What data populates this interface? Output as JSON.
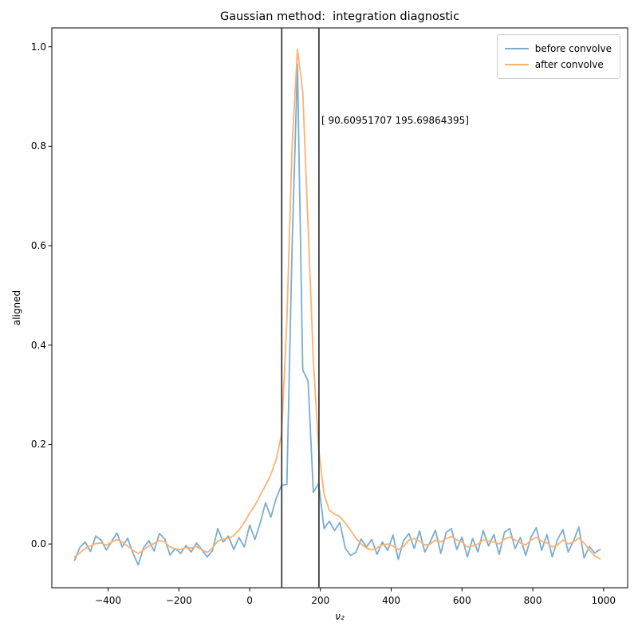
{
  "chart_data": {
    "type": "line",
    "title": "Gaussian method:  integration diagnostic",
    "xlabel": "ν₂",
    "ylabel": "aligned",
    "xlim": [
      -559,
      1068
    ],
    "ylim": [
      -0.088,
      1.038
    ],
    "grid": false,
    "legend_position": "upper right",
    "xticks": {
      "values": [
        -400,
        -200,
        0,
        200,
        400,
        600,
        800,
        1000
      ],
      "labels": [
        "−400",
        "−200",
        "0",
        "200",
        "400",
        "600",
        "800",
        "1000"
      ]
    },
    "yticks": {
      "values": [
        0.0,
        0.2,
        0.4,
        0.6,
        0.8,
        1.0
      ],
      "labels": [
        "0.0",
        "0.2",
        "0.4",
        "0.6",
        "0.8",
        "1.0"
      ]
    },
    "x": [
      -495,
      -480,
      -465,
      -450,
      -435,
      -420,
      -405,
      -390,
      -375,
      -360,
      -345,
      -330,
      -315,
      -300,
      -285,
      -270,
      -255,
      -240,
      -225,
      -210,
      -195,
      -180,
      -165,
      -150,
      -135,
      -120,
      -105,
      -90,
      -75,
      -60,
      -45,
      -30,
      -15,
      0,
      15,
      30,
      45,
      60,
      75,
      90,
      105,
      120,
      135,
      150,
      165,
      180,
      195,
      210,
      225,
      240,
      255,
      270,
      285,
      300,
      315,
      330,
      345,
      360,
      375,
      390,
      405,
      420,
      435,
      450,
      465,
      480,
      495,
      510,
      525,
      540,
      555,
      570,
      585,
      600,
      615,
      630,
      645,
      660,
      675,
      690,
      705,
      720,
      735,
      750,
      765,
      780,
      795,
      810,
      825,
      840,
      855,
      870,
      885,
      900,
      915,
      930,
      945,
      960,
      975,
      990
    ],
    "series": [
      {
        "name": "before convolve",
        "color": "#79add2",
        "y": [
          -0.033,
          -0.007,
          0.004,
          -0.015,
          0.016,
          0.008,
          -0.012,
          0.005,
          0.022,
          -0.006,
          0.012,
          -0.018,
          -0.042,
          -0.008,
          0.007,
          -0.014,
          0.021,
          0.01,
          -0.022,
          -0.009,
          -0.019,
          -0.003,
          -0.016,
          0.002,
          -0.012,
          -0.026,
          -0.013,
          0.031,
          0.004,
          0.016,
          -0.011,
          0.013,
          -0.006,
          0.038,
          0.009,
          0.043,
          0.083,
          0.054,
          0.092,
          0.118,
          0.12,
          0.6,
          0.965,
          0.35,
          0.328,
          0.104,
          0.122,
          0.031,
          0.046,
          0.027,
          0.043,
          -0.008,
          -0.023,
          -0.017,
          0.01,
          -0.006,
          0.009,
          -0.021,
          0.004,
          -0.013,
          0.018,
          -0.031,
          0.007,
          0.021,
          -0.009,
          0.026,
          -0.016,
          0.004,
          0.028,
          -0.019,
          0.023,
          0.031,
          -0.011,
          0.014,
          -0.026,
          0.011,
          -0.016,
          0.027,
          -0.004,
          0.019,
          -0.021,
          0.024,
          0.031,
          -0.009,
          0.013,
          -0.023,
          0.014,
          0.033,
          -0.013,
          0.019,
          -0.026,
          0.009,
          0.029,
          -0.016,
          0.006,
          0.034,
          -0.028,
          -0.005,
          -0.018,
          -0.011
        ]
      },
      {
        "name": "after convolve",
        "color": "#ffb16e",
        "y": [
          -0.026,
          -0.018,
          -0.009,
          -0.004,
          0.001,
          0.002,
          -0.002,
          0.004,
          0.009,
          0.004,
          -0.004,
          -0.013,
          -0.019,
          -0.012,
          -0.004,
          0.001,
          0.007,
          0.004,
          -0.006,
          -0.01,
          -0.011,
          -0.007,
          -0.008,
          -0.005,
          -0.012,
          -0.017,
          -0.008,
          0.006,
          0.01,
          0.011,
          0.017,
          0.028,
          0.044,
          0.062,
          0.078,
          0.098,
          0.118,
          0.14,
          0.17,
          0.22,
          0.45,
          0.8,
          0.995,
          0.91,
          0.64,
          0.37,
          0.19,
          0.1,
          0.068,
          0.06,
          0.055,
          0.042,
          0.028,
          0.012,
          0.0,
          -0.008,
          -0.012,
          -0.008,
          -0.002,
          0.0,
          -0.004,
          -0.011,
          -0.005,
          0.008,
          0.011,
          0.006,
          -0.002,
          0.0,
          0.008,
          0.004,
          0.011,
          0.015,
          0.008,
          0.004,
          -0.006,
          -0.004,
          0.0,
          0.008,
          0.006,
          0.004,
          0.0,
          0.01,
          0.014,
          0.008,
          0.002,
          -0.002,
          0.008,
          0.013,
          0.006,
          0.002,
          -0.006,
          -0.002,
          0.008,
          0.0,
          0.004,
          0.012,
          0.002,
          -0.012,
          -0.024,
          -0.03
        ]
      }
    ],
    "vlines": {
      "color": "#333333",
      "values": [
        90.60951707,
        195.69864395
      ]
    },
    "annotation": {
      "text": "[ 90.60951707 195.69864395]",
      "x": 196,
      "y": 0.85
    }
  }
}
